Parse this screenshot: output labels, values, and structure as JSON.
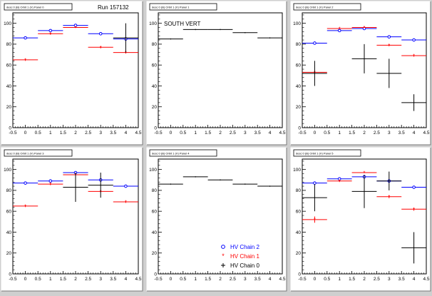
{
  "run_label": "Run 157132",
  "colors": {
    "chain2": "#0000ff",
    "chain1": "#ff0000",
    "chain0": "#000000",
    "background": "#cfcfcf",
    "panel": "#ffffff"
  },
  "legend": [
    {
      "label": "HV Chain 2",
      "color": "#0000ff",
      "marker": "circle"
    },
    {
      "label": "HV Chain 1",
      "color": "#ff0000",
      "marker": "star"
    },
    {
      "label": "HV Chain 0",
      "color": "#000000",
      "marker": "cross"
    }
  ],
  "chart_data": [
    {
      "type": "scatter",
      "title": "desc 0 (B) Orbit 1 (V) Panel 0",
      "xlim": [
        -0.5,
        4.5
      ],
      "ylim": [
        0,
        110
      ],
      "xticks": [
        "-0.5",
        "0",
        "0.5",
        "1",
        "1.5",
        "2",
        "2.5",
        "3",
        "3.5",
        "4",
        "4.5"
      ],
      "yticks": [
        "0",
        "20",
        "40",
        "60",
        "80",
        "100"
      ],
      "series": [
        {
          "name": "HV Chain 2",
          "marker": "circle",
          "color": "#0000ff",
          "points": [
            {
              "x": 0,
              "y": 86,
              "xerr": 0.5,
              "yerr": 0.5
            },
            {
              "x": 1,
              "y": 93,
              "xerr": 0.5,
              "yerr": 0.5
            },
            {
              "x": 2,
              "y": 98,
              "xerr": 0.5,
              "yerr": 0.5
            },
            {
              "x": 3,
              "y": 90,
              "xerr": 0.5,
              "yerr": 0.5
            },
            {
              "x": 4,
              "y": 85,
              "xerr": 0.5,
              "yerr": 1
            }
          ]
        },
        {
          "name": "HV Chain 1",
          "marker": "star",
          "color": "#ff0000",
          "points": [
            {
              "x": 0,
              "y": 65,
              "xerr": 0.5,
              "yerr": 1
            },
            {
              "x": 1,
              "y": 90,
              "xerr": 0.5,
              "yerr": 1
            },
            {
              "x": 2,
              "y": 96,
              "xerr": 0.5,
              "yerr": 0.5
            },
            {
              "x": 3,
              "y": 77,
              "xerr": 0.5,
              "yerr": 1
            },
            {
              "x": 4,
              "y": 72,
              "xerr": 0.5,
              "yerr": 1
            }
          ]
        },
        {
          "name": "HV Chain 0",
          "marker": "cross",
          "color": "#000000",
          "points": [
            {
              "x": 4,
              "y": 86,
              "xerr": 0.5,
              "yerr": 14
            }
          ]
        }
      ]
    },
    {
      "type": "scatter",
      "title": "desc 0 (B) Orbit 1 (V) Panel 1",
      "annotation": "SOUTH VERT",
      "xlim": [
        -0.5,
        4.5
      ],
      "ylim": [
        0,
        110
      ],
      "xticks": [
        "-0.5",
        "0",
        "0.5",
        "1",
        "1.5",
        "2",
        "2.5",
        "3",
        "3.5",
        "4",
        "4.5"
      ],
      "yticks": [
        "0",
        "20",
        "40",
        "60",
        "80",
        "100"
      ],
      "series": [
        {
          "name": "HV Chain 0",
          "marker": "cross",
          "color": "#000000",
          "points": [
            {
              "x": 0,
              "y": 85,
              "xerr": 0.5,
              "yerr": 0.5
            },
            {
              "x": 1,
              "y": 94,
              "xerr": 0.5,
              "yerr": 0.5
            },
            {
              "x": 2,
              "y": 94,
              "xerr": 0.5,
              "yerr": 0.5
            },
            {
              "x": 3,
              "y": 91,
              "xerr": 0.5,
              "yerr": 0.5
            },
            {
              "x": 4,
              "y": 86,
              "xerr": 0.5,
              "yerr": 0.5
            }
          ]
        }
      ]
    },
    {
      "type": "scatter",
      "title": "desc 0 (B) Orbit 1 (V) Panel 2",
      "xlim": [
        -0.5,
        4.5
      ],
      "ylim": [
        0,
        110
      ],
      "xticks": [
        "-0.5",
        "0",
        "0.5",
        "1",
        "1.5",
        "2",
        "2.5",
        "3",
        "3.5",
        "4",
        "4.5"
      ],
      "yticks": [
        "0",
        "20",
        "40",
        "60",
        "80",
        "100"
      ],
      "series": [
        {
          "name": "HV Chain 2",
          "marker": "circle",
          "color": "#0000ff",
          "points": [
            {
              "x": 0,
              "y": 81,
              "xerr": 0.5,
              "yerr": 0.5
            },
            {
              "x": 1,
              "y": 93,
              "xerr": 0.5,
              "yerr": 0.5
            },
            {
              "x": 2,
              "y": 95,
              "xerr": 0.5,
              "yerr": 0.5
            },
            {
              "x": 3,
              "y": 87,
              "xerr": 0.5,
              "yerr": 0.5
            },
            {
              "x": 4,
              "y": 84,
              "xerr": 0.5,
              "yerr": 0.5
            }
          ]
        },
        {
          "name": "HV Chain 1",
          "marker": "star",
          "color": "#ff0000",
          "points": [
            {
              "x": 0,
              "y": 53,
              "xerr": 0.5,
              "yerr": 1
            },
            {
              "x": 1,
              "y": 95,
              "xerr": 0.5,
              "yerr": 0.5
            },
            {
              "x": 2,
              "y": 96,
              "xerr": 0.5,
              "yerr": 0.5
            },
            {
              "x": 3,
              "y": 79,
              "xerr": 0.5,
              "yerr": 1
            },
            {
              "x": 4,
              "y": 69,
              "xerr": 0.5,
              "yerr": 1
            }
          ]
        },
        {
          "name": "HV Chain 0",
          "marker": "cross",
          "color": "#000000",
          "points": [
            {
              "x": 0,
              "y": 52,
              "xerr": 0.5,
              "yerr": 12
            },
            {
              "x": 2,
              "y": 66,
              "xerr": 0.5,
              "yerr": 14
            },
            {
              "x": 3,
              "y": 52,
              "xerr": 0.5,
              "yerr": 14
            },
            {
              "x": 4,
              "y": 24,
              "xerr": 0.5,
              "yerr": 8
            }
          ]
        }
      ]
    },
    {
      "type": "scatter",
      "title": "desc 0 (B) Orbit 1 (V) Panel 3",
      "xlim": [
        -0.5,
        4.5
      ],
      "ylim": [
        0,
        110
      ],
      "xticks": [
        "-0.5",
        "0",
        "0.5",
        "1",
        "1.5",
        "2",
        "2.5",
        "3",
        "3.5",
        "4",
        "4.5"
      ],
      "yticks": [
        "0",
        "20",
        "40",
        "60",
        "80",
        "100"
      ],
      "series": [
        {
          "name": "HV Chain 2",
          "marker": "circle",
          "color": "#0000ff",
          "points": [
            {
              "x": 0,
              "y": 87,
              "xerr": 0.5,
              "yerr": 0.5
            },
            {
              "x": 1,
              "y": 89,
              "xerr": 0.5,
              "yerr": 0.5
            },
            {
              "x": 2,
              "y": 97,
              "xerr": 0.5,
              "yerr": 0.5
            },
            {
              "x": 3,
              "y": 90,
              "xerr": 0.5,
              "yerr": 1
            },
            {
              "x": 4,
              "y": 84,
              "xerr": 0.5,
              "yerr": 0.5
            }
          ]
        },
        {
          "name": "HV Chain 1",
          "marker": "star",
          "color": "#ff0000",
          "points": [
            {
              "x": 0,
              "y": 65,
              "xerr": 0.5,
              "yerr": 1
            },
            {
              "x": 1,
              "y": 86,
              "xerr": 0.5,
              "yerr": 1
            },
            {
              "x": 2,
              "y": 95,
              "xerr": 0.5,
              "yerr": 0.5
            },
            {
              "x": 3,
              "y": 79,
              "xerr": 0.5,
              "yerr": 1
            },
            {
              "x": 4,
              "y": 69,
              "xerr": 0.5,
              "yerr": 1
            }
          ]
        },
        {
          "name": "HV Chain 0",
          "marker": "cross",
          "color": "#000000",
          "points": [
            {
              "x": 2,
              "y": 83,
              "xerr": 0.5,
              "yerr": 14
            },
            {
              "x": 3,
              "y": 85,
              "xerr": 0.5,
              "yerr": 12
            }
          ]
        }
      ]
    },
    {
      "type": "scatter",
      "title": "desc 0 (B) Orbit 1 (V) Panel 4",
      "xlim": [
        -0.5,
        4.5
      ],
      "ylim": [
        0,
        110
      ],
      "xticks": [
        "-0.5",
        "0",
        "0.5",
        "1",
        "1.5",
        "2",
        "2.5",
        "3",
        "3.5",
        "4",
        "4.5"
      ],
      "yticks": [
        "0",
        "20",
        "40",
        "60",
        "80",
        "100"
      ],
      "series": [
        {
          "name": "HV Chain 0",
          "marker": "cross",
          "color": "#000000",
          "points": [
            {
              "x": 0,
              "y": 86,
              "xerr": 0.5,
              "yerr": 0.5
            },
            {
              "x": 1,
              "y": 93,
              "xerr": 0.5,
              "yerr": 0.5
            },
            {
              "x": 2,
              "y": 90,
              "xerr": 0.5,
              "yerr": 0.5
            },
            {
              "x": 3,
              "y": 86,
              "xerr": 0.5,
              "yerr": 0.5
            },
            {
              "x": 4,
              "y": 84,
              "xerr": 0.5,
              "yerr": 0.5
            }
          ]
        }
      ]
    },
    {
      "type": "scatter",
      "title": "desc 0 (B) Orbit 1 (V) Panel 5",
      "xlim": [
        -0.5,
        4.5
      ],
      "ylim": [
        0,
        110
      ],
      "xticks": [
        "-0.5",
        "0",
        "0.5",
        "1",
        "1.5",
        "2",
        "2.5",
        "3",
        "3.5",
        "4",
        "4.5"
      ],
      "yticks": [
        "0",
        "20",
        "40",
        "60",
        "80",
        "100"
      ],
      "series": [
        {
          "name": "HV Chain 2",
          "marker": "circle",
          "color": "#0000ff",
          "points": [
            {
              "x": 0,
              "y": 87,
              "xerr": 0.5,
              "yerr": 0.5
            },
            {
              "x": 1,
              "y": 91,
              "xerr": 0.5,
              "yerr": 0.5
            },
            {
              "x": 2,
              "y": 93,
              "xerr": 0.5,
              "yerr": 0.5
            },
            {
              "x": 3,
              "y": 89,
              "xerr": 0.5,
              "yerr": 0.5
            },
            {
              "x": 4,
              "y": 83,
              "xerr": 0.5,
              "yerr": 0.5
            }
          ]
        },
        {
          "name": "HV Chain 1",
          "marker": "star",
          "color": "#ff0000",
          "points": [
            {
              "x": 0,
              "y": 52,
              "xerr": 0.5,
              "yerr": 3
            },
            {
              "x": 1,
              "y": 89,
              "xerr": 0.5,
              "yerr": 1
            },
            {
              "x": 2,
              "y": 97,
              "xerr": 0.5,
              "yerr": 0.5
            },
            {
              "x": 3,
              "y": 74,
              "xerr": 0.5,
              "yerr": 1.5
            },
            {
              "x": 4,
              "y": 62,
              "xerr": 0.5,
              "yerr": 1.5
            }
          ]
        },
        {
          "name": "HV Chain 0",
          "marker": "cross",
          "color": "#000000",
          "points": [
            {
              "x": 0,
              "y": 73,
              "xerr": 0.5,
              "yerr": 13
            },
            {
              "x": 2,
              "y": 79,
              "xerr": 0.5,
              "yerr": 16
            },
            {
              "x": 3,
              "y": 89,
              "xerr": 0.5,
              "yerr": 9
            },
            {
              "x": 4,
              "y": 25,
              "xerr": 0.5,
              "yerr": 15
            }
          ]
        }
      ]
    }
  ]
}
